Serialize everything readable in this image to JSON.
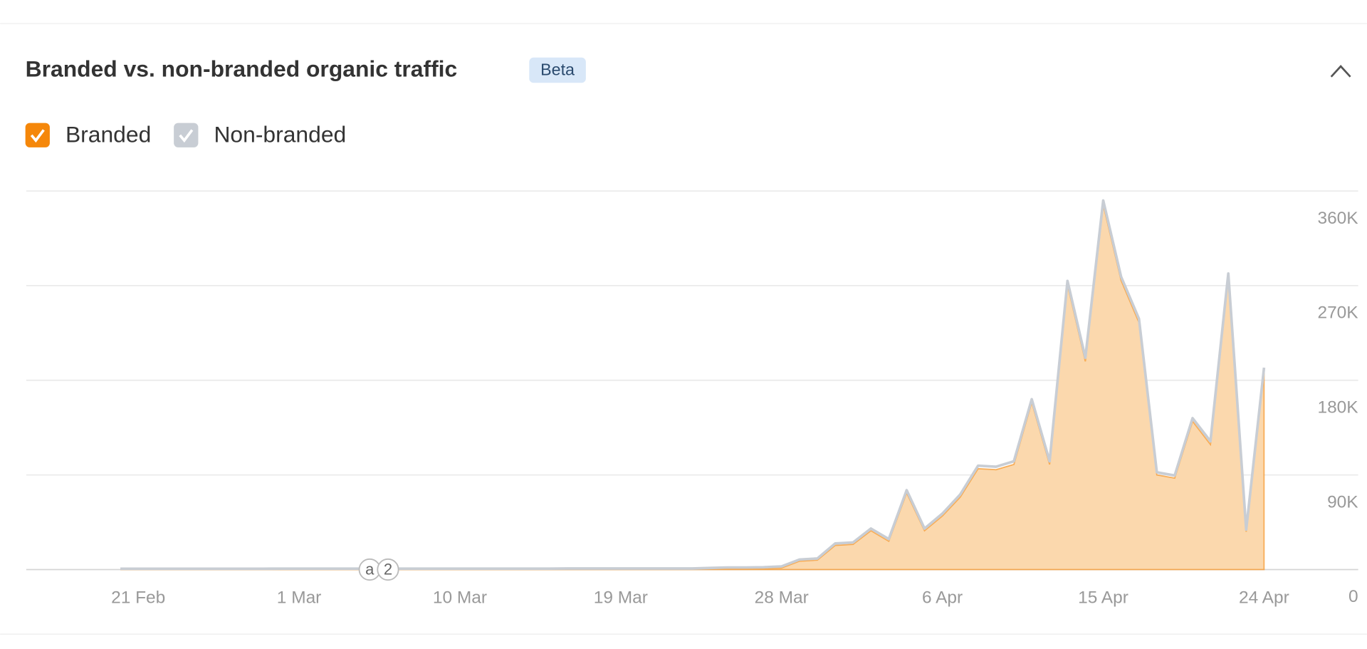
{
  "header": {
    "title": "Branded vs. non-branded organic traffic",
    "badge": "Beta"
  },
  "chart_data": {
    "type": "area",
    "categories": [
      null,
      "21 Feb",
      null,
      null,
      null,
      null,
      null,
      null,
      null,
      null,
      "1 Mar",
      null,
      null,
      null,
      null,
      null,
      null,
      null,
      null,
      "10 Mar",
      null,
      null,
      null,
      null,
      null,
      null,
      null,
      null,
      "19 Mar",
      null,
      null,
      null,
      null,
      null,
      null,
      null,
      null,
      "28 Mar",
      null,
      null,
      null,
      null,
      null,
      null,
      null,
      null,
      "6 Apr",
      null,
      null,
      null,
      null,
      null,
      null,
      null,
      null,
      "15 Apr",
      null,
      null,
      null,
      null,
      null,
      null,
      null,
      null,
      "24 Apr"
    ],
    "series": [
      {
        "name": "Branded",
        "color": "#f5870a",
        "fill": "#fbd8ad",
        "values": [
          0,
          0,
          0,
          0,
          0,
          0,
          0,
          0,
          0,
          0,
          0,
          0,
          0,
          0,
          0,
          0,
          0,
          0,
          0,
          0,
          0,
          0,
          0,
          0,
          0,
          0,
          0,
          0,
          0,
          0,
          0,
          0,
          0,
          500,
          800,
          800,
          1000,
          1500,
          8000,
          9000,
          23000,
          24000,
          37000,
          27000,
          73000,
          37000,
          51000,
          69000,
          96000,
          95000,
          100000,
          159000,
          100000,
          271000,
          198000,
          347000,
          275000,
          235000,
          90000,
          87000,
          141000,
          119000,
          278000,
          36000,
          189000
        ]
      },
      {
        "name": "Non-branded",
        "color": "#c8cdd4",
        "values": [
          800,
          800,
          800,
          800,
          800,
          800,
          800,
          800,
          800,
          900,
          900,
          900,
          900,
          900,
          900,
          900,
          900,
          900,
          900,
          900,
          900,
          900,
          900,
          900,
          900,
          1000,
          1000,
          1000,
          1000,
          1000,
          1000,
          1000,
          1000,
          1000,
          1200,
          1200,
          1200,
          1500,
          1500,
          1500,
          1800,
          1800,
          2000,
          2000,
          2500,
          2000,
          2200,
          2500,
          2800,
          2800,
          3000,
          3000,
          3000,
          3500,
          3500,
          4000,
          3500,
          3500,
          2500,
          2500,
          3000,
          3000,
          3500,
          2000,
          3000
        ]
      }
    ],
    "ylim": [
      0,
      360000
    ],
    "yticks": [
      0,
      {
        "value": 90000,
        "label": "90K"
      },
      {
        "value": 180000,
        "label": "180K"
      },
      {
        "value": 270000,
        "label": "270K"
      },
      {
        "value": 360000,
        "label": "360K"
      }
    ],
    "grid": true,
    "annotations": [
      "a",
      "2"
    ]
  }
}
